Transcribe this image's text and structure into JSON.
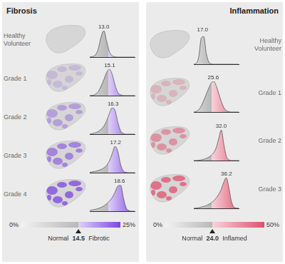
{
  "chart_data": [
    {
      "type": "area",
      "title": "Fibrosis",
      "color": "#7d45e0",
      "x": [
        8,
        9,
        10,
        11,
        12,
        13,
        14,
        15,
        16,
        17,
        18,
        19,
        20,
        21,
        22,
        23,
        24
      ],
      "xlim": [
        8,
        24
      ],
      "ylim": [
        0,
        1
      ],
      "tick_labels": false,
      "series": [
        {
          "name": "Healthy Volunteer",
          "values": [
            0,
            0.02,
            0.08,
            0.3,
            0.75,
            1,
            0.6,
            0.2,
            0.05,
            0.01,
            0,
            0,
            0,
            0,
            0,
            0,
            0
          ],
          "peak": {
            "value": 13.0,
            "label": "13.0"
          }
        },
        {
          "name": "Grade 1",
          "values": [
            0,
            0.01,
            0.05,
            0.15,
            0.35,
            0.6,
            0.88,
            1,
            0.8,
            0.4,
            0.12,
            0.03,
            0,
            0,
            0,
            0,
            0
          ],
          "peak": {
            "value": 15.1,
            "label": "15.1"
          }
        },
        {
          "name": "Grade 2",
          "values": [
            0,
            0.02,
            0.05,
            0.1,
            0.18,
            0.3,
            0.5,
            0.78,
            1,
            0.9,
            0.45,
            0.12,
            0.02,
            0,
            0,
            0,
            0
          ],
          "peak": {
            "value": 16.3,
            "label": "16.3"
          }
        },
        {
          "name": "Grade 3",
          "values": [
            0.01,
            0.03,
            0.05,
            0.08,
            0.12,
            0.18,
            0.28,
            0.45,
            0.72,
            1,
            0.8,
            0.3,
            0.06,
            0.01,
            0,
            0,
            0
          ],
          "peak": {
            "value": 17.2,
            "label": "17.2"
          }
        },
        {
          "name": "Grade 4",
          "values": [
            0.03,
            0.05,
            0.07,
            0.1,
            0.14,
            0.2,
            0.28,
            0.38,
            0.52,
            0.72,
            0.95,
            0.98,
            0.5,
            0.12,
            0.02,
            0,
            0
          ],
          "peak": {
            "value": 18.6,
            "label": "18.6"
          }
        }
      ],
      "colorbar": {
        "range": [
          0,
          25
        ],
        "ticks": [
          {
            "value": 0,
            "label": "0%"
          },
          {
            "value": 25,
            "label": "25%"
          }
        ],
        "threshold": {
          "value": 14.5,
          "label": "14.5"
        },
        "labels": [
          "Normal",
          "Fibrotic"
        ]
      }
    },
    {
      "type": "area",
      "title": "Inflammation",
      "color": "#e0506e",
      "x": [
        10,
        12,
        14,
        16,
        18,
        20,
        22,
        24,
        26,
        28,
        30,
        32,
        34,
        36,
        38,
        40,
        42,
        44,
        46
      ],
      "xlim": [
        10,
        46
      ],
      "ylim": [
        0,
        1
      ],
      "tick_labels": false,
      "series": [
        {
          "name": "Healthy Volunteer",
          "values": [
            0,
            0.03,
            0.25,
            0.85,
            0.9,
            0.35,
            0.08,
            0.01,
            0,
            0,
            0,
            0,
            0,
            0,
            0,
            0,
            0,
            0,
            0
          ],
          "peak": {
            "value": 17.0,
            "label": "17.0"
          }
        },
        {
          "name": "Grade 1",
          "values": [
            0,
            0.02,
            0.08,
            0.2,
            0.38,
            0.58,
            0.78,
            0.95,
            1,
            0.85,
            0.6,
            0.35,
            0.15,
            0.05,
            0.01,
            0,
            0,
            0,
            0
          ],
          "peak": {
            "value": 25.6,
            "label": "25.6"
          }
        },
        {
          "name": "Grade 2",
          "values": [
            0,
            0,
            0.01,
            0.02,
            0.04,
            0.07,
            0.11,
            0.17,
            0.26,
            0.42,
            0.72,
            1,
            0.55,
            0.15,
            0.03,
            0,
            0,
            0,
            0
          ],
          "peak": {
            "value": 32.0,
            "label": "32.0"
          }
        },
        {
          "name": "Grade 3",
          "values": [
            0,
            0.01,
            0.02,
            0.04,
            0.06,
            0.09,
            0.13,
            0.18,
            0.25,
            0.34,
            0.46,
            0.62,
            0.85,
            1,
            0.7,
            0.25,
            0.05,
            0.01,
            0
          ],
          "peak": {
            "value": 36.2,
            "label": "36.2"
          }
        }
      ],
      "colorbar": {
        "range": [
          0,
          50
        ],
        "ticks": [
          {
            "value": 0,
            "label": "0%"
          },
          {
            "value": 50,
            "label": "50%"
          }
        ],
        "threshold": {
          "value": 24.0,
          "label": "24.0"
        },
        "labels": [
          "Normal",
          "Inflamed"
        ]
      }
    }
  ]
}
